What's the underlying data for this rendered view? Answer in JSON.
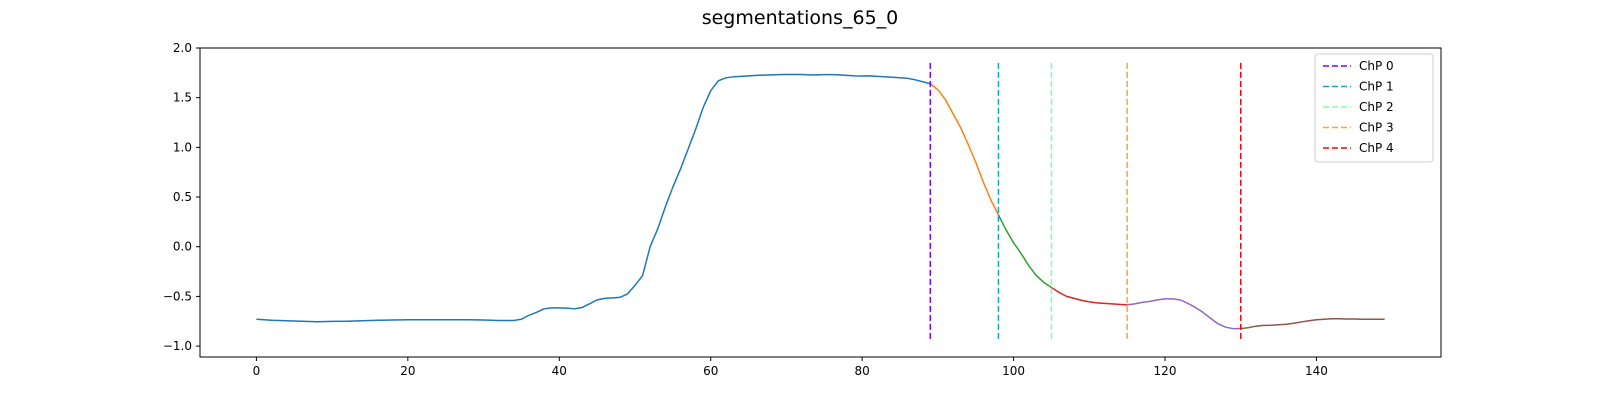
{
  "chart_data": {
    "type": "line",
    "title": "segmentations_65_0",
    "xlabel": "",
    "ylabel": "",
    "xlim": [
      -7.45,
      156.45
    ],
    "ylim": [
      -1.11,
      2.0
    ],
    "xticks": [
      0,
      20,
      40,
      60,
      80,
      100,
      120,
      140
    ],
    "yticks": [
      -1.0,
      -0.5,
      0.0,
      0.5,
      1.0,
      1.5,
      2.0
    ],
    "xtick_labels": [
      "0",
      "20",
      "40",
      "60",
      "80",
      "100",
      "120",
      "140"
    ],
    "ytick_labels": [
      "−1.0",
      "−0.5",
      "0.0",
      "0.5",
      "1.0",
      "1.5",
      "2.0"
    ],
    "grid": false,
    "legend_position": "top-right",
    "series": [
      {
        "color": "#1f77b4",
        "x": [
          0,
          2,
          4,
          6,
          8,
          10,
          12,
          14,
          16,
          18,
          20,
          22,
          24,
          26,
          28,
          30,
          32,
          34,
          35,
          36,
          37,
          38,
          39,
          40,
          41,
          42,
          43,
          44,
          45,
          46,
          47,
          48,
          49,
          50,
          51,
          52,
          53,
          54,
          55,
          56,
          57,
          58,
          59,
          60,
          61,
          62,
          63,
          64,
          65,
          66,
          67,
          68,
          69,
          70,
          71,
          72,
          73,
          74,
          75,
          76,
          77,
          78,
          79,
          80,
          81,
          82,
          83,
          84,
          85,
          86,
          87,
          88,
          89
        ],
        "y": [
          -0.73,
          -0.74,
          -0.745,
          -0.75,
          -0.755,
          -0.752,
          -0.75,
          -0.745,
          -0.74,
          -0.738,
          -0.735,
          -0.735,
          -0.735,
          -0.735,
          -0.735,
          -0.738,
          -0.742,
          -0.742,
          -0.73,
          -0.69,
          -0.66,
          -0.625,
          -0.615,
          -0.615,
          -0.618,
          -0.625,
          -0.612,
          -0.575,
          -0.535,
          -0.52,
          -0.515,
          -0.51,
          -0.475,
          -0.39,
          -0.29,
          0.0,
          0.18,
          0.4,
          0.6,
          0.78,
          0.98,
          1.18,
          1.4,
          1.57,
          1.67,
          1.7,
          1.71,
          1.715,
          1.72,
          1.725,
          1.727,
          1.73,
          1.732,
          1.733,
          1.733,
          1.733,
          1.73,
          1.73,
          1.732,
          1.732,
          1.73,
          1.725,
          1.72,
          1.718,
          1.72,
          1.715,
          1.71,
          1.705,
          1.7,
          1.695,
          1.68,
          1.66,
          1.64
        ]
      },
      {
        "color": "#ff7f0e",
        "x": [
          89,
          90,
          91,
          92,
          93,
          94,
          95,
          96,
          97,
          98
        ],
        "y": [
          1.64,
          1.58,
          1.48,
          1.34,
          1.2,
          1.03,
          0.85,
          0.65,
          0.47,
          0.32
        ]
      },
      {
        "color": "#2ca02c",
        "x": [
          98,
          99,
          100,
          101,
          102,
          103,
          104,
          105
        ],
        "y": [
          0.32,
          0.17,
          0.04,
          -0.07,
          -0.19,
          -0.29,
          -0.36,
          -0.41
        ]
      },
      {
        "color": "#d62728",
        "x": [
          105,
          106,
          107,
          108,
          109,
          110,
          111,
          112,
          113,
          114,
          115
        ],
        "y": [
          -0.41,
          -0.46,
          -0.5,
          -0.52,
          -0.54,
          -0.555,
          -0.565,
          -0.57,
          -0.575,
          -0.58,
          -0.585
        ]
      },
      {
        "color": "#9467bd",
        "x": [
          115,
          116,
          117,
          118,
          119,
          120,
          121,
          122,
          123,
          124,
          125,
          126,
          127,
          128,
          129,
          130
        ],
        "y": [
          -0.585,
          -0.575,
          -0.56,
          -0.55,
          -0.535,
          -0.525,
          -0.525,
          -0.535,
          -0.57,
          -0.61,
          -0.66,
          -0.72,
          -0.775,
          -0.81,
          -0.825,
          -0.825
        ]
      },
      {
        "color": "#8c564b",
        "x": [
          130,
          131,
          132,
          133,
          134,
          135,
          136,
          137,
          138,
          139,
          140,
          141,
          142,
          143,
          144,
          145,
          146,
          147,
          148,
          149
        ],
        "y": [
          -0.825,
          -0.815,
          -0.8,
          -0.792,
          -0.79,
          -0.785,
          -0.78,
          -0.77,
          -0.757,
          -0.745,
          -0.735,
          -0.73,
          -0.725,
          -0.725,
          -0.727,
          -0.728,
          -0.73,
          -0.73,
          -0.73,
          -0.73
        ]
      }
    ],
    "changepoints": [
      {
        "name": "ChP 0",
        "x": 89,
        "color": "#7f00ff"
      },
      {
        "name": "ChP 1",
        "x": 98,
        "color": "#17a2c8"
      },
      {
        "name": "ChP 2",
        "x": 105,
        "color": "#7fffa5"
      },
      {
        "name": "ChP 3",
        "x": 115,
        "color": "#ffa040"
      },
      {
        "name": "ChP 4",
        "x": 130,
        "color": "#ff0000"
      }
    ],
    "changepoint_yrange": [
      -0.95,
      1.85
    ]
  }
}
